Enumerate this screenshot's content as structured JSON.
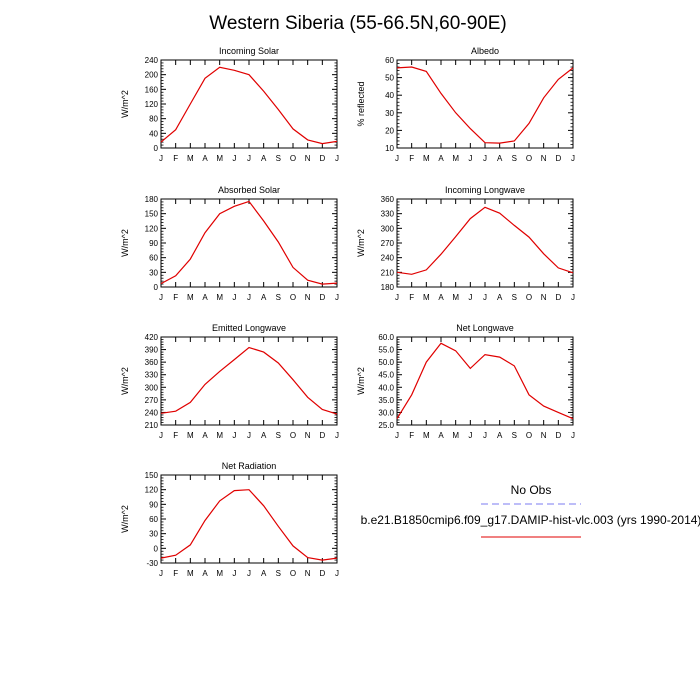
{
  "figure": {
    "title": "Western Siberia (55-66.5N,60-90E)"
  },
  "legend": {
    "title": "No Obs",
    "entries": [
      {
        "name": "",
        "color": "#7b7bf0",
        "dash": "dashed"
      },
      {
        "name": "b.e21.B1850cmip6.f09_g17.DAMIP-hist-vlc.003 (yrs 1990-2014)",
        "color": "#e00000",
        "dash": "solid"
      }
    ]
  },
  "chart_data": [
    {
      "type": "line",
      "title": "Incoming Solar",
      "ylabel": "W/m^2",
      "categories": [
        "J",
        "F",
        "M",
        "A",
        "M",
        "J",
        "J",
        "A",
        "S",
        "O",
        "N",
        "D",
        "J"
      ],
      "ylim": [
        0,
        240
      ],
      "yticks": [
        0,
        40,
        80,
        120,
        160,
        200,
        240
      ],
      "ytick_labels": [
        "0",
        "40",
        "80",
        "120",
        "160",
        "200",
        "240"
      ],
      "series": [
        {
          "color": "#e00000",
          "values": [
            16,
            50,
            120,
            190,
            220,
            212,
            200,
            155,
            105,
            52,
            22,
            12,
            18
          ]
        }
      ]
    },
    {
      "type": "line",
      "title": "Albedo",
      "ylabel": "% reflected",
      "categories": [
        "J",
        "F",
        "M",
        "A",
        "M",
        "J",
        "J",
        "A",
        "S",
        "O",
        "N",
        "D",
        "J"
      ],
      "ylim": [
        10,
        60
      ],
      "yticks": [
        10,
        20,
        30,
        40,
        50,
        60
      ],
      "ytick_labels": [
        "10",
        "20",
        "30",
        "40",
        "50",
        "60"
      ],
      "series": [
        {
          "color": "#e00000",
          "values": [
            55.5,
            56,
            53.5,
            41,
            30,
            21,
            13,
            12.8,
            14,
            24,
            38.5,
            49,
            55.5
          ]
        }
      ]
    },
    {
      "type": "line",
      "title": "Absorbed Solar",
      "ylabel": "W/m^2",
      "categories": [
        "J",
        "F",
        "M",
        "A",
        "M",
        "J",
        "J",
        "A",
        "S",
        "O",
        "N",
        "D",
        "J"
      ],
      "ylim": [
        0,
        180
      ],
      "yticks": [
        0,
        30,
        60,
        90,
        120,
        150,
        180
      ],
      "ytick_labels": [
        "0",
        "30",
        "60",
        "90",
        "120",
        "150",
        "180"
      ],
      "series": [
        {
          "color": "#e00000",
          "values": [
            7,
            23,
            57,
            111,
            150,
            165,
            175,
            135,
            92,
            40,
            14,
            6,
            8
          ]
        }
      ]
    },
    {
      "type": "line",
      "title": "Incoming Longwave",
      "ylabel": "W/m^2",
      "categories": [
        "J",
        "F",
        "M",
        "A",
        "M",
        "J",
        "J",
        "A",
        "S",
        "O",
        "N",
        "D",
        "J"
      ],
      "ylim": [
        180,
        360
      ],
      "yticks": [
        180,
        210,
        240,
        270,
        300,
        330,
        360
      ],
      "ytick_labels": [
        "180",
        "210",
        "240",
        "270",
        "300",
        "330",
        "360"
      ],
      "series": [
        {
          "color": "#e00000",
          "values": [
            210,
            206,
            215,
            247,
            283,
            320,
            343,
            331,
            306,
            282,
            248,
            219,
            209
          ]
        }
      ]
    },
    {
      "type": "line",
      "title": "Emitted Longwave",
      "ylabel": "W/m^2",
      "categories": [
        "J",
        "F",
        "M",
        "A",
        "M",
        "J",
        "J",
        "A",
        "S",
        "O",
        "N",
        "D",
        "J"
      ],
      "ylim": [
        210,
        420
      ],
      "yticks": [
        210,
        240,
        270,
        300,
        330,
        360,
        390,
        420
      ],
      "ytick_labels": [
        "210",
        "240",
        "270",
        "300",
        "330",
        "360",
        "390",
        "420"
      ],
      "series": [
        {
          "color": "#e00000",
          "values": [
            238,
            243,
            264,
            307,
            338,
            366,
            395,
            384,
            358,
            318,
            276,
            247,
            236
          ]
        }
      ]
    },
    {
      "type": "line",
      "title": "Net Longwave",
      "ylabel": "W/m^2",
      "categories": [
        "J",
        "F",
        "M",
        "A",
        "M",
        "J",
        "J",
        "A",
        "S",
        "O",
        "N",
        "D",
        "J"
      ],
      "ylim": [
        25,
        60
      ],
      "yticks": [
        25,
        30,
        35,
        40,
        45,
        50,
        55,
        60
      ],
      "ytick_labels": [
        "25.0",
        "30.0",
        "35.0",
        "40.0",
        "45.0",
        "50.0",
        "55.0",
        "60.0"
      ],
      "series": [
        {
          "color": "#e00000",
          "values": [
            27.5,
            37,
            50,
            57.5,
            54.5,
            47.5,
            53,
            52,
            48.5,
            37,
            32.5,
            30,
            27.5
          ]
        }
      ]
    },
    {
      "type": "line",
      "title": "Net Radiation",
      "ylabel": "W/m^2",
      "categories": [
        "J",
        "F",
        "M",
        "A",
        "M",
        "J",
        "J",
        "A",
        "S",
        "O",
        "N",
        "D",
        "J"
      ],
      "ylim": [
        -30,
        150
      ],
      "yticks": [
        -30,
        0,
        30,
        60,
        90,
        120,
        150
      ],
      "ytick_labels": [
        "-30",
        "0",
        "30",
        "60",
        "90",
        "120",
        "150"
      ],
      "series": [
        {
          "color": "#e00000",
          "values": [
            -20,
            -14,
            7,
            57,
            97,
            118,
            120,
            87,
            45,
            5,
            -19,
            -24,
            -20
          ]
        }
      ]
    }
  ]
}
